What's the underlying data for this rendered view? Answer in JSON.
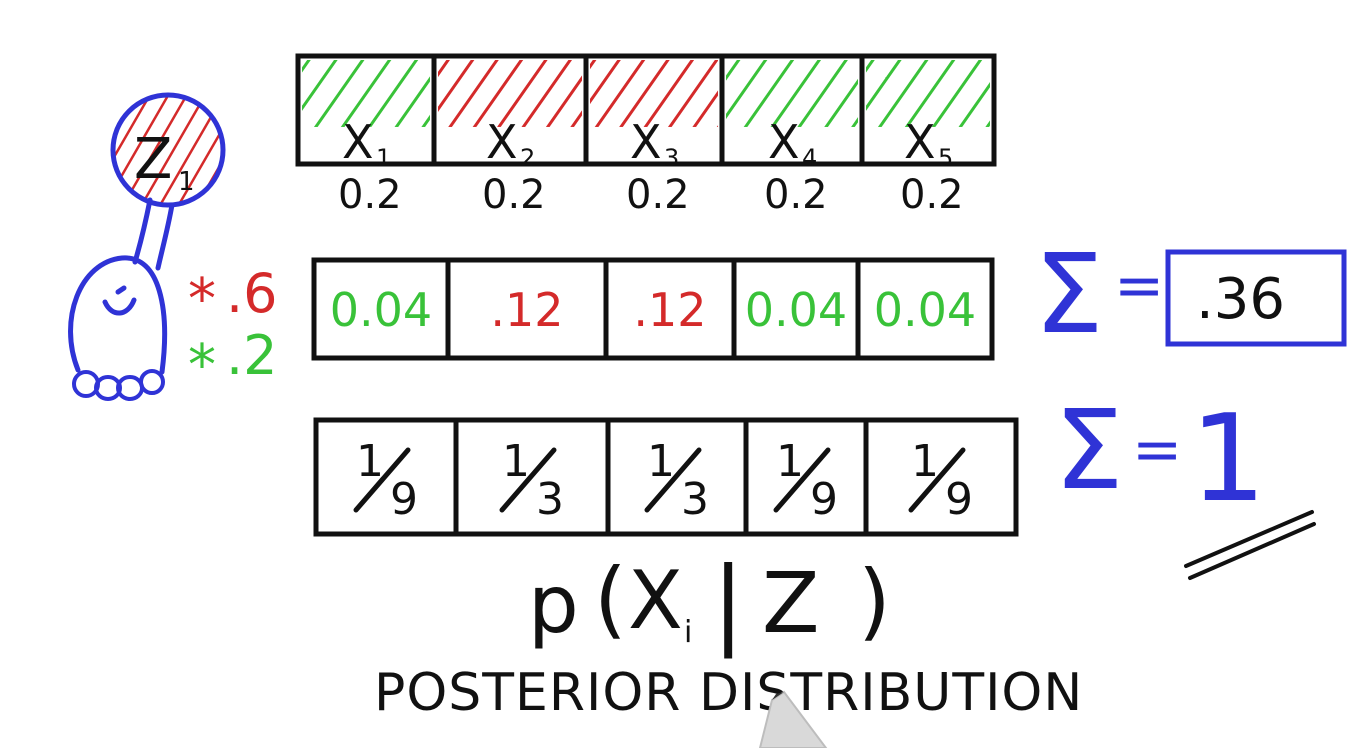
{
  "colors": {
    "ink": "#111111",
    "red": "#d42a2a",
    "green": "#39c239",
    "blue": "#2f33d6",
    "board": "#ffffff"
  },
  "prior_row": {
    "cells": [
      {
        "label_x": "X",
        "label_sub": "1",
        "hatch": "green"
      },
      {
        "label_x": "X",
        "label_sub": "2",
        "hatch": "red"
      },
      {
        "label_x": "X",
        "label_sub": "3",
        "hatch": "red"
      },
      {
        "label_x": "X",
        "label_sub": "4",
        "hatch": "green"
      },
      {
        "label_x": "X",
        "label_sub": "5",
        "hatch": "green"
      }
    ],
    "probabilities": [
      "0.2",
      "0.2",
      "0.2",
      "0.2",
      "0.2"
    ]
  },
  "measurement": {
    "label_z": "Z",
    "label_sub": "1",
    "hit_star": "*",
    "hit_value": ".6",
    "miss_star": "*",
    "miss_value": ".2"
  },
  "product_row": {
    "cells": [
      {
        "value": "0.04",
        "color": "green"
      },
      {
        "value": ".12",
        "color": "red"
      },
      {
        "value": ".12",
        "color": "red"
      },
      {
        "value": "0.04",
        "color": "green"
      },
      {
        "value": "0.04",
        "color": "green"
      }
    ],
    "sum_symbol": "Σ",
    "sum_equals": "=",
    "sum_value": ".36"
  },
  "posterior_row": {
    "cells": [
      {
        "num": "1",
        "den": "9"
      },
      {
        "num": "1",
        "den": "3"
      },
      {
        "num": "1",
        "den": "3"
      },
      {
        "num": "1",
        "den": "9"
      },
      {
        "num": "1",
        "den": "9"
      }
    ],
    "sum_symbol": "Σ",
    "sum_equals": "=",
    "sum_value": "1"
  },
  "formula": {
    "p": "p",
    "open": "(",
    "x": "X",
    "sub": "i",
    "bar": "|",
    "z": "Z",
    "close": ")"
  },
  "caption": "POSTERIOR DISTRIBUTION"
}
